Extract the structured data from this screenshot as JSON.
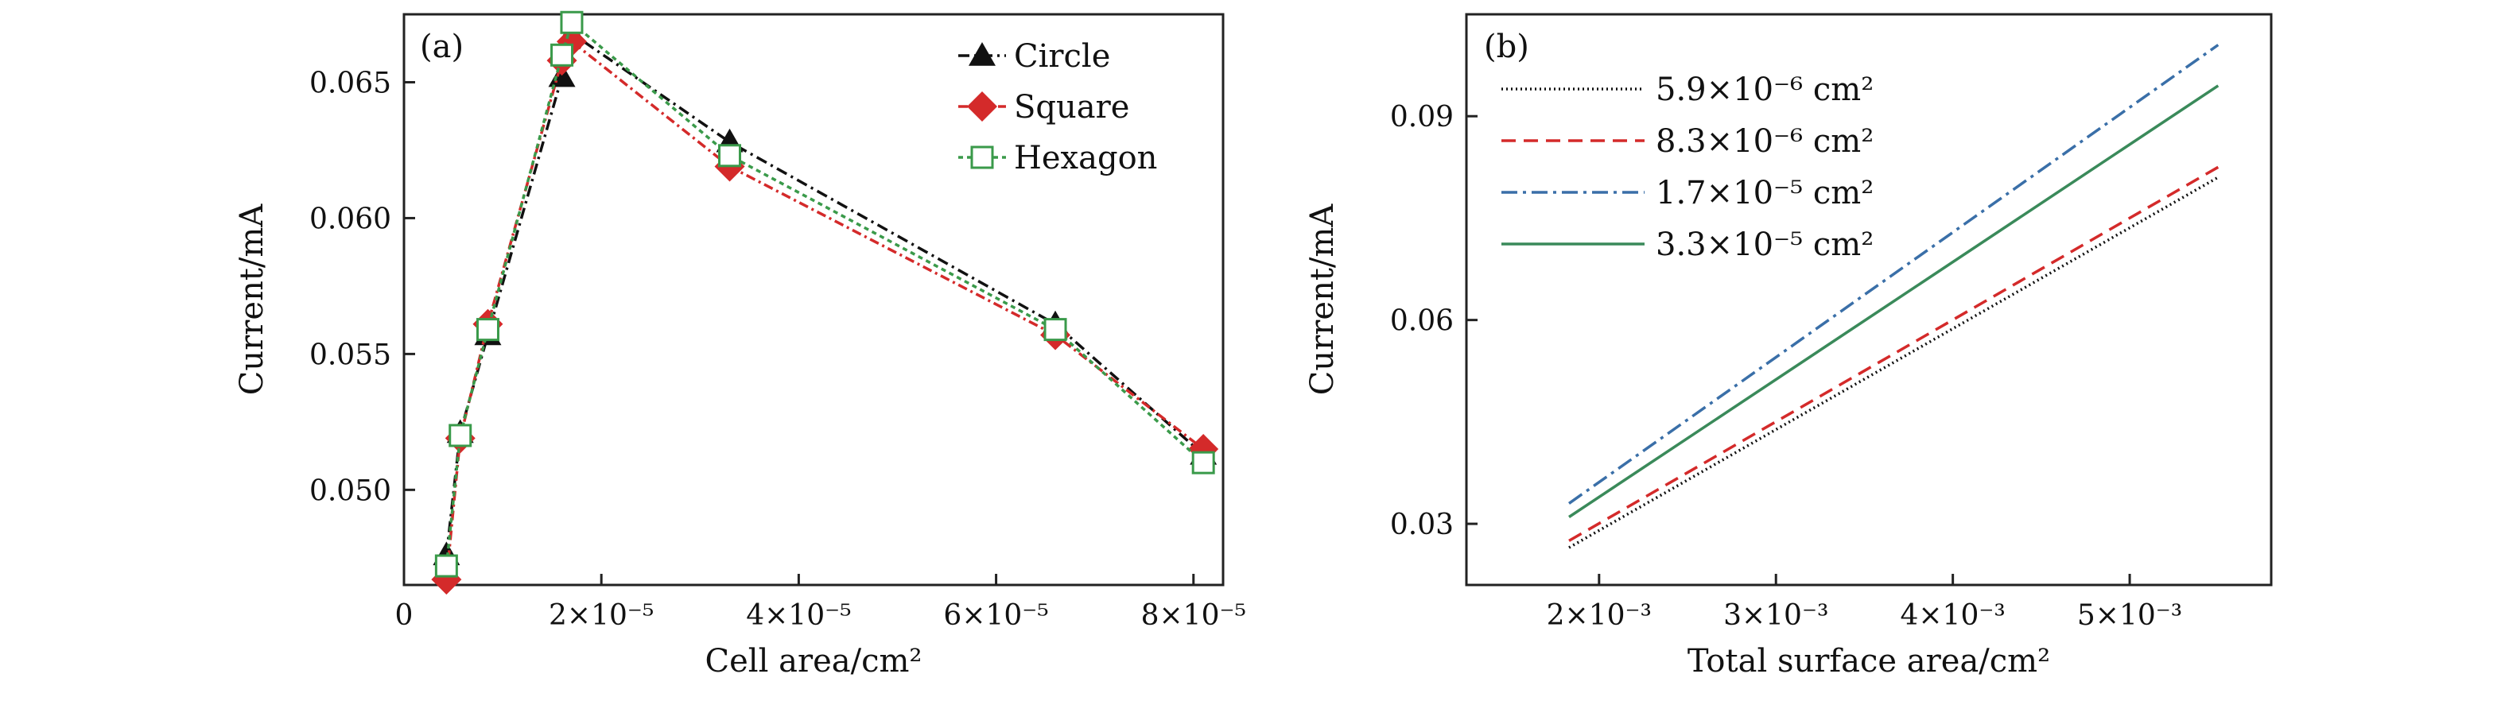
{
  "chart_data": [
    {
      "panel": "(a)",
      "type": "line",
      "xlabel": "Cell area/cm²",
      "ylabel": "Current/mA",
      "xlim": [
        0,
        8.3e-05
      ],
      "ylim": [
        0.0465,
        0.0675
      ],
      "xticks": [
        0,
        2e-05,
        4e-05,
        6e-05,
        8e-05
      ],
      "xtick_labels": [
        "0",
        "2×10⁻⁵",
        "4×10⁻⁵",
        "6×10⁻⁵",
        "8×10⁻⁵"
      ],
      "yticks": [
        0.05,
        0.055,
        0.06,
        0.065
      ],
      "ytick_labels": [
        "0.050",
        "0.055",
        "0.060",
        "0.065"
      ],
      "legend_position": "top-right",
      "series": [
        {
          "name": "Circle",
          "color": "#111111",
          "marker": "triangle",
          "dash": "14,6,3,6",
          "x": [
            4.3e-06,
            5.7e-06,
            8.5e-06,
            1.6e-05,
            1.7e-05,
            3.3e-05,
            6.6e-05,
            8.1e-05
          ],
          "y": [
            0.0476,
            0.0521,
            0.0557,
            0.0652,
            0.0668,
            0.0628,
            0.0561,
            0.0513
          ]
        },
        {
          "name": "Square",
          "color": "#d42a2a",
          "marker": "diamond",
          "dash": "12,5,3,5",
          "x": [
            4.3e-06,
            5.7e-06,
            8.5e-06,
            1.6e-05,
            1.7e-05,
            3.3e-05,
            6.6e-05,
            8.1e-05
          ],
          "y": [
            0.0467,
            0.0519,
            0.0561,
            0.0658,
            0.0665,
            0.0619,
            0.0557,
            0.0515
          ]
        },
        {
          "name": "Hexagon",
          "color": "#3a9a4a",
          "marker": "square",
          "dash": "6,5",
          "x": [
            4.3e-06,
            5.7e-06,
            8.5e-06,
            1.6e-05,
            1.7e-05,
            3.3e-05,
            6.6e-05,
            8.1e-05
          ],
          "y": [
            0.0472,
            0.052,
            0.0559,
            0.066,
            0.0672,
            0.0623,
            0.0559,
            0.051
          ]
        }
      ]
    },
    {
      "panel": "(b)",
      "type": "line",
      "xlabel": "Total surface area/cm²",
      "ylabel": "Current/mA",
      "xlim": [
        0.00125,
        0.0058
      ],
      "ylim": [
        0.021,
        0.105
      ],
      "xticks": [
        0.002,
        0.003,
        0.004,
        0.005
      ],
      "xtick_labels": [
        "2×10⁻³",
        "3×10⁻³",
        "4×10⁻³",
        "5×10⁻³"
      ],
      "yticks": [
        0.03,
        0.06,
        0.09
      ],
      "ytick_labels": [
        "0.03",
        "0.06",
        "0.09"
      ],
      "legend_position": "top-left",
      "series": [
        {
          "name": "5.9×10⁻⁶ cm²",
          "color": "#111111",
          "dash": "2,4",
          "x": [
            0.00183,
            0.0055
          ],
          "y": [
            0.0265,
            0.081
          ]
        },
        {
          "name": "8.3×10⁻⁶ cm²",
          "color": "#d42a2a",
          "dash": "18,10",
          "x": [
            0.00183,
            0.0055
          ],
          "y": [
            0.0275,
            0.0825
          ]
        },
        {
          "name": "1.7×10⁻⁵ cm²",
          "color": "#3a6fa8",
          "dash": "20,7,4,7",
          "x": [
            0.00183,
            0.0055
          ],
          "y": [
            0.033,
            0.1005
          ]
        },
        {
          "name": "3.3×10⁻⁵ cm²",
          "color": "#3a8a5a",
          "dash": "",
          "x": [
            0.00183,
            0.0055
          ],
          "y": [
            0.031,
            0.0945
          ]
        }
      ]
    }
  ]
}
